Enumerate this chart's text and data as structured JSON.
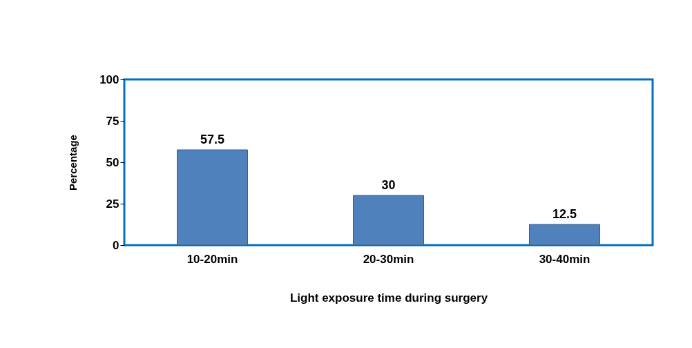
{
  "chart_data": {
    "type": "bar",
    "xlabel": "Light exposure time during surgery",
    "ylabel": "Percentage",
    "categories": [
      "10-20min",
      "20-30min",
      "30-40min"
    ],
    "values": [
      57.5,
      30,
      12.5
    ],
    "color": "#4f81bd",
    "ylim": [
      0,
      100
    ],
    "yticks": [
      0,
      25,
      50,
      75,
      100
    ],
    "grid": false,
    "data_labels": true
  }
}
